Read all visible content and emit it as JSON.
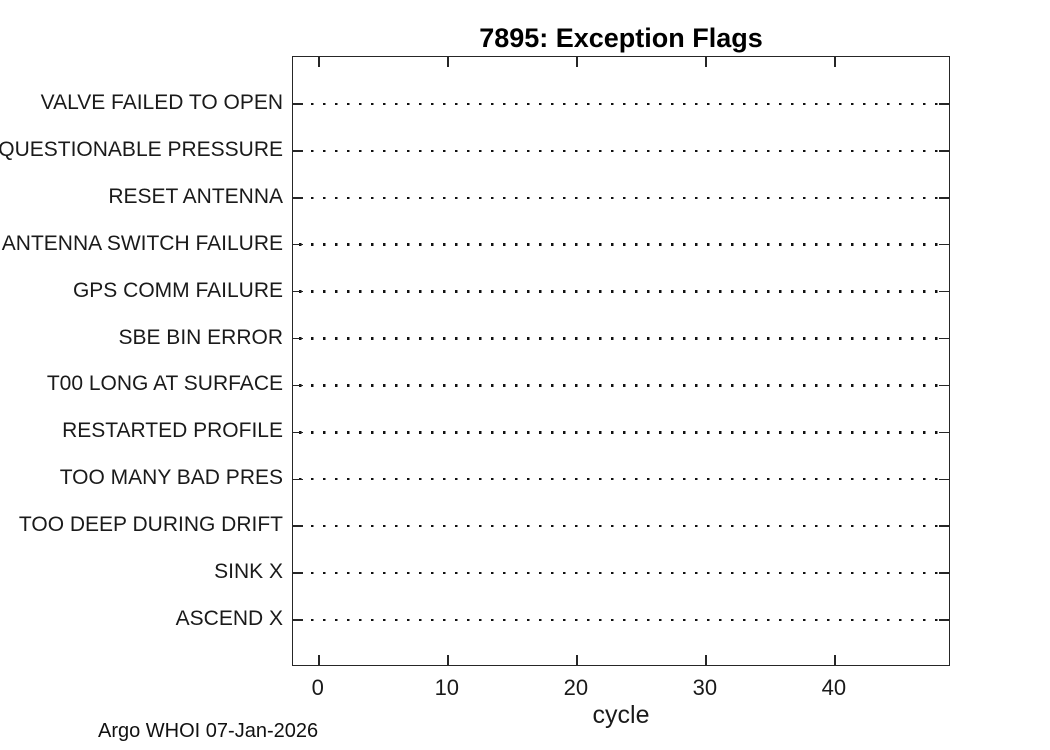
{
  "title": "7895: Exception Flags",
  "x_axis_label": "cycle",
  "annotation": "Argo WHOI 07-Jan-2026",
  "colors": {
    "background": "#ffffff",
    "axis_line": "#262626",
    "tick_label_text": "#1a1a1a",
    "title_text": "#000000",
    "grid_dot": "#111111"
  },
  "chart_data": {
    "type": "scatter",
    "title": "7895: Exception Flags",
    "xlabel": "cycle",
    "ylabel": "",
    "x_ticks": [
      0,
      10,
      20,
      30,
      40
    ],
    "xlim": [
      -2,
      49
    ],
    "categories": [
      "VALVE FAILED TO OPEN",
      "QUESTIONABLE PRESSURE",
      "RESET ANTENNA",
      "ANTENNA SWITCH FAILURE",
      "GPS COMM FAILURE",
      "SBE BIN ERROR",
      "T00 LONG AT SURFACE",
      "RESTARTED PROFILE",
      "TOO MANY BAD PRES",
      "TOO DEEP DURING DRIFT",
      "SINK X",
      "ASCEND X"
    ],
    "points": [],
    "grid": "dotted horizontal reference line per category, box on, inward ticks mirrored on all sides",
    "legend": "none",
    "annotation": "Argo WHOI 07-Jan-2026"
  }
}
